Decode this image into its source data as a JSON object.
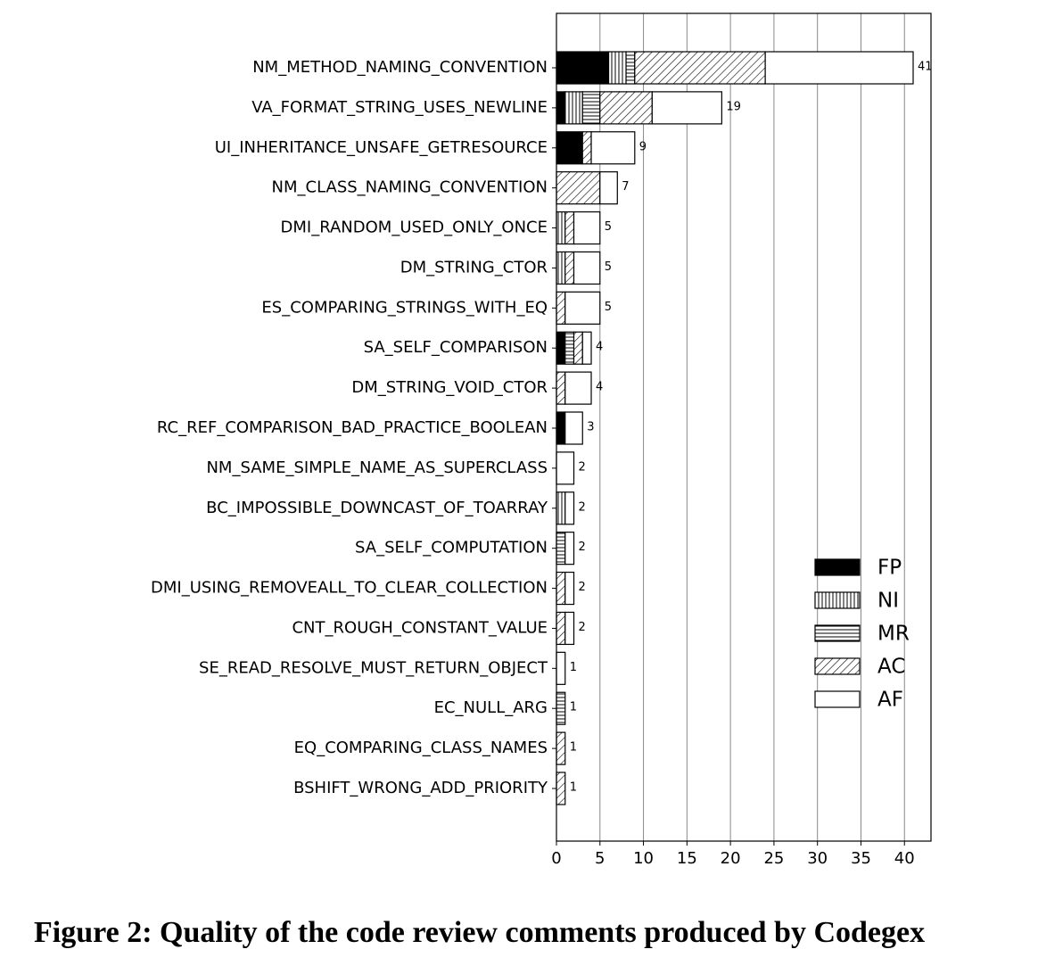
{
  "chart_data": {
    "type": "stacked-barh",
    "caption": "Figure 2: Quality of the code review comments produced by Codegex",
    "categories": [
      "NM_METHOD_NAMING_CONVENTION",
      "VA_FORMAT_STRING_USES_NEWLINE",
      "UI_INHERITANCE_UNSAFE_GETRESOURCE",
      "NM_CLASS_NAMING_CONVENTION",
      "DMI_RANDOM_USED_ONLY_ONCE",
      "DM_STRING_CTOR",
      "ES_COMPARING_STRINGS_WITH_EQ",
      "SA_SELF_COMPARISON",
      "DM_STRING_VOID_CTOR",
      "RC_REF_COMPARISON_BAD_PRACTICE_BOOLEAN",
      "NM_SAME_SIMPLE_NAME_AS_SUPERCLASS",
      "BC_IMPOSSIBLE_DOWNCAST_OF_TOARRAY",
      "SA_SELF_COMPUTATION",
      "DMI_USING_REMOVEALL_TO_CLEAR_COLLECTION",
      "CNT_ROUGH_CONSTANT_VALUE",
      "SE_READ_RESOLVE_MUST_RETURN_OBJECT",
      "EC_NULL_ARG",
      "EQ_COMPARING_CLASS_NAMES",
      "BSHIFT_WRONG_ADD_PRIORITY"
    ],
    "series": [
      {
        "name": "FP",
        "color": "#000000",
        "hatch": "solid",
        "values": [
          6,
          1,
          3,
          0,
          0,
          0,
          0,
          1,
          0,
          1,
          0,
          0,
          0,
          0,
          0,
          0,
          0,
          0,
          0
        ]
      },
      {
        "name": "NI",
        "color": "#ffffff",
        "hatch": "vertical",
        "values": [
          2,
          2,
          0,
          0,
          1,
          1,
          0,
          0,
          0,
          0,
          0,
          1,
          0,
          0,
          0,
          0,
          0,
          0,
          0
        ]
      },
      {
        "name": "MR",
        "color": "#ffffff",
        "hatch": "horizontal",
        "values": [
          1,
          2,
          0,
          0,
          0,
          0,
          0,
          1,
          0,
          0,
          0,
          0,
          1,
          0,
          0,
          0,
          1,
          0,
          0
        ]
      },
      {
        "name": "AC",
        "color": "#ffffff",
        "hatch": "diagonal",
        "values": [
          15,
          6,
          1,
          5,
          1,
          1,
          1,
          1,
          1,
          0,
          0,
          0,
          0,
          1,
          1,
          0,
          0,
          1,
          1
        ]
      },
      {
        "name": "AF",
        "color": "#ffffff",
        "hatch": "none",
        "values": [
          17,
          8,
          5,
          2,
          3,
          3,
          4,
          1,
          3,
          2,
          2,
          1,
          1,
          1,
          1,
          1,
          0,
          0,
          0
        ]
      }
    ],
    "totals": [
      41,
      19,
      9,
      7,
      5,
      5,
      5,
      4,
      4,
      3,
      2,
      2,
      2,
      2,
      2,
      1,
      1,
      1,
      1
    ],
    "xlim": [
      0,
      43.05
    ],
    "xticks": [
      0,
      5,
      10,
      15,
      20,
      25,
      30,
      35,
      40
    ],
    "grid": true,
    "legend": "center right"
  }
}
